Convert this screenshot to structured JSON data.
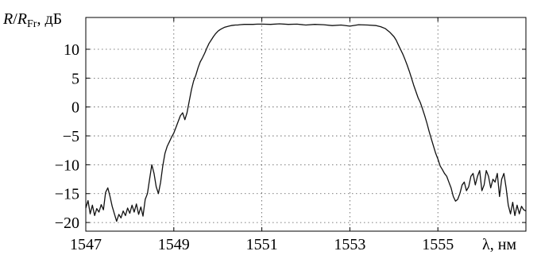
{
  "chart_data": {
    "type": "line",
    "ylabel_parts": {
      "r": "R",
      "slash": "/",
      "rfr": "R",
      "sub": "Fr",
      "unit": ", дБ"
    },
    "xlabel": "λ, нм",
    "xlim": [
      1547,
      1557
    ],
    "ylim": [
      -21.5,
      15.5
    ],
    "xticks": [
      1547,
      1549,
      1551,
      1553,
      1555
    ],
    "xtick_labels": [
      "1547",
      "1549",
      "1551",
      "1553",
      "1555"
    ],
    "yticks": [
      10,
      5,
      0,
      -5,
      -10,
      -15,
      -20
    ],
    "ytick_labels": [
      "10",
      "5",
      "0",
      "−5",
      "−10",
      "−15",
      "−20"
    ],
    "grid": true,
    "series": [
      {
        "x": [
          1547.0,
          1547.05,
          1547.1,
          1547.15,
          1547.2,
          1547.25,
          1547.3,
          1547.35,
          1547.4,
          1547.45,
          1547.5,
          1547.55,
          1547.6,
          1547.65,
          1547.7,
          1547.75,
          1547.8,
          1547.85,
          1547.9,
          1547.95,
          1548.0,
          1548.05,
          1548.1,
          1548.15,
          1548.2,
          1548.25,
          1548.3,
          1548.35,
          1548.4,
          1548.45,
          1548.5,
          1548.55,
          1548.6,
          1548.65,
          1548.7,
          1548.75,
          1548.8,
          1548.85,
          1548.9,
          1548.95,
          1549.0,
          1549.05,
          1549.1,
          1549.15,
          1549.2,
          1549.25,
          1549.3,
          1549.35,
          1549.4,
          1549.45,
          1549.5,
          1549.55,
          1549.6,
          1549.65,
          1549.7,
          1549.75,
          1549.8,
          1549.85,
          1549.9,
          1549.95,
          1550.0,
          1550.05,
          1550.1,
          1550.15,
          1550.2,
          1550.25,
          1550.3,
          1550.35,
          1550.4,
          1550.45,
          1550.5,
          1550.6,
          1550.7,
          1550.8,
          1550.9,
          1551.0,
          1551.2,
          1551.4,
          1551.6,
          1551.8,
          1552.0,
          1552.2,
          1552.4,
          1552.6,
          1552.8,
          1553.0,
          1553.2,
          1553.4,
          1553.6,
          1553.7,
          1553.8,
          1553.9,
          1554.0,
          1554.05,
          1554.1,
          1554.15,
          1554.2,
          1554.25,
          1554.3,
          1554.35,
          1554.4,
          1554.45,
          1554.5,
          1554.55,
          1554.6,
          1554.65,
          1554.7,
          1554.75,
          1554.8,
          1554.85,
          1554.9,
          1554.95,
          1555.0,
          1555.05,
          1555.1,
          1555.15,
          1555.2,
          1555.25,
          1555.3,
          1555.35,
          1555.4,
          1555.45,
          1555.5,
          1555.55,
          1555.6,
          1555.65,
          1555.7,
          1555.75,
          1555.8,
          1555.85,
          1555.9,
          1555.95,
          1556.0,
          1556.05,
          1556.1,
          1556.15,
          1556.2,
          1556.25,
          1556.3,
          1556.35,
          1556.4,
          1556.45,
          1556.5,
          1556.55,
          1556.6,
          1556.65,
          1556.7,
          1556.75,
          1556.8,
          1556.85,
          1556.9,
          1556.95,
          1557.0
        ],
        "y": [
          -17.5,
          -16.2,
          -18.5,
          -17.0,
          -18.8,
          -17.6,
          -18.2,
          -16.9,
          -17.8,
          -14.8,
          -14.0,
          -15.5,
          -17.2,
          -18.5,
          -19.8,
          -18.6,
          -19.2,
          -18.0,
          -18.8,
          -17.5,
          -18.4,
          -17.0,
          -18.2,
          -16.8,
          -18.6,
          -17.3,
          -18.9,
          -16.0,
          -15.0,
          -12.5,
          -10.0,
          -11.5,
          -13.8,
          -15.0,
          -13.0,
          -10.2,
          -8.0,
          -6.8,
          -6.0,
          -5.2,
          -4.5,
          -3.5,
          -2.5,
          -1.5,
          -1.0,
          -2.2,
          -1.0,
          1.0,
          3.0,
          4.5,
          5.5,
          6.8,
          7.8,
          8.5,
          9.3,
          10.2,
          11.0,
          11.6,
          12.2,
          12.7,
          13.1,
          13.4,
          13.6,
          13.8,
          13.9,
          14.0,
          14.1,
          14.15,
          14.2,
          14.2,
          14.25,
          14.3,
          14.3,
          14.3,
          14.35,
          14.35,
          14.3,
          14.4,
          14.3,
          14.35,
          14.2,
          14.3,
          14.25,
          14.1,
          14.2,
          14.0,
          14.25,
          14.2,
          14.1,
          13.9,
          13.6,
          13.0,
          12.2,
          11.6,
          10.8,
          10.0,
          9.2,
          8.3,
          7.3,
          6.2,
          5.0,
          3.8,
          2.7,
          1.6,
          0.8,
          -0.3,
          -1.5,
          -2.8,
          -4.2,
          -5.5,
          -6.8,
          -8.0,
          -9.0,
          -10.2,
          -10.8,
          -11.5,
          -12.0,
          -13.0,
          -14.0,
          -15.5,
          -16.3,
          -16.0,
          -15.0,
          -13.5,
          -13.0,
          -14.5,
          -13.8,
          -12.0,
          -11.5,
          -13.5,
          -12.0,
          -11.0,
          -14.5,
          -13.5,
          -11.0,
          -12.0,
          -14.0,
          -12.5,
          -13.0,
          -11.5,
          -15.5,
          -12.5,
          -11.5,
          -14.0,
          -17.0,
          -18.5,
          -16.5,
          -18.8,
          -17.0,
          -18.5,
          -17.2,
          -17.8,
          -18.0
        ]
      }
    ]
  }
}
